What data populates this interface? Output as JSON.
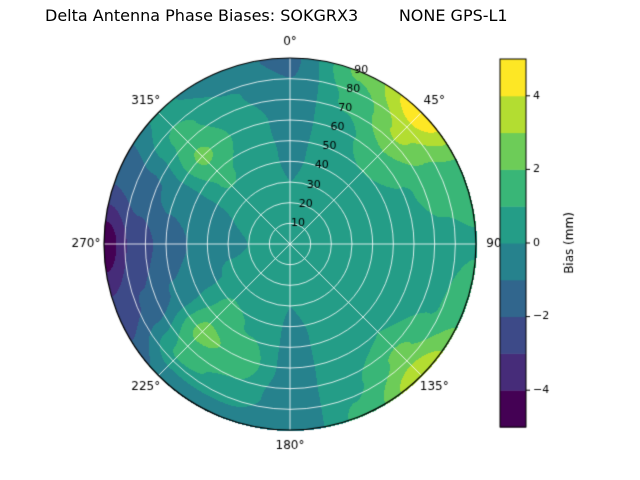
{
  "title": "Delta Antenna Phase Biases: SOKGRX3        NONE GPS-L1",
  "chart_data": {
    "type": "heatmap",
    "projection": "polar",
    "title": "Delta Antenna Phase Biases: SOKGRX3        NONE GPS-L1",
    "station": "SOKGRX3",
    "signal": "NONE GPS-L1",
    "angular_ticks": [
      {
        "deg": 0,
        "label": "0°"
      },
      {
        "deg": 45,
        "label": "45°"
      },
      {
        "deg": 90,
        "label": "90"
      },
      {
        "deg": 135,
        "label": "135°"
      },
      {
        "deg": 180,
        "label": "180°"
      },
      {
        "deg": 225,
        "label": "225°"
      },
      {
        "deg": 270,
        "label": "270°"
      },
      {
        "deg": 315,
        "label": "315°"
      }
    ],
    "radial_ticks": [
      10,
      20,
      30,
      40,
      50,
      60,
      70,
      80,
      90
    ],
    "radial_max": 90,
    "radial_label_azimuth_deg": 22.5,
    "grid_color": "#ffffff",
    "colormap_stops": [
      "#440154",
      "#46317e",
      "#3b518b",
      "#2c718e",
      "#21908c",
      "#27ad81",
      "#5cc863",
      "#aadc32",
      "#fde725"
    ],
    "colorbar": {
      "label": "Bias (mm)",
      "min": -5,
      "max": 5,
      "levels": 10,
      "ticks": [
        -4,
        -2,
        0,
        2,
        4
      ],
      "tick_labels": [
        "−4",
        "−2",
        "0",
        "2",
        "4"
      ]
    },
    "grid": {
      "azimuth_deg": [
        0,
        22.5,
        45,
        67.5,
        90,
        112.5,
        135,
        157.5,
        180,
        202.5,
        225,
        247.5,
        270,
        292.5,
        315,
        337.5
      ],
      "zenith_deg": [
        0,
        15,
        30,
        45,
        60,
        75,
        90
      ],
      "values": [
        [
          0.3,
          0.2,
          0.0,
          -0.2,
          -0.5,
          -0.9,
          -1.2
        ],
        [
          0.3,
          0.3,
          0.2,
          0.3,
          0.6,
          1.2,
          2.2
        ],
        [
          0.3,
          0.3,
          0.4,
          0.8,
          1.8,
          3.2,
          4.8
        ],
        [
          0.3,
          0.3,
          0.3,
          0.5,
          0.9,
          1.4,
          1.6
        ],
        [
          0.3,
          0.2,
          0.2,
          0.3,
          0.5,
          0.7,
          0.9
        ],
        [
          0.3,
          0.2,
          0.2,
          0.3,
          0.5,
          0.9,
          1.8
        ],
        [
          0.3,
          0.2,
          0.3,
          0.5,
          1.0,
          2.2,
          3.8
        ],
        [
          0.3,
          0.2,
          0.2,
          0.2,
          0.4,
          0.8,
          1.2
        ],
        [
          0.3,
          0.2,
          0.0,
          -0.2,
          -0.4,
          -0.7,
          -1.0
        ],
        [
          0.3,
          0.3,
          0.4,
          0.9,
          1.6,
          0.8,
          -0.6
        ],
        [
          0.3,
          0.3,
          0.6,
          1.3,
          2.3,
          1.2,
          -0.8
        ],
        [
          0.3,
          0.2,
          0.1,
          -0.2,
          -0.9,
          -1.9,
          -2.6
        ],
        [
          0.3,
          0.1,
          -0.2,
          -0.8,
          -1.6,
          -2.6,
          -4.7
        ],
        [
          0.3,
          0.2,
          0.0,
          -0.3,
          -0.7,
          -1.3,
          -1.8
        ],
        [
          0.3,
          0.3,
          0.5,
          1.2,
          2.2,
          1.3,
          0.2
        ],
        [
          0.3,
          0.3,
          0.3,
          0.5,
          0.7,
          0.1,
          -0.7
        ]
      ]
    }
  }
}
